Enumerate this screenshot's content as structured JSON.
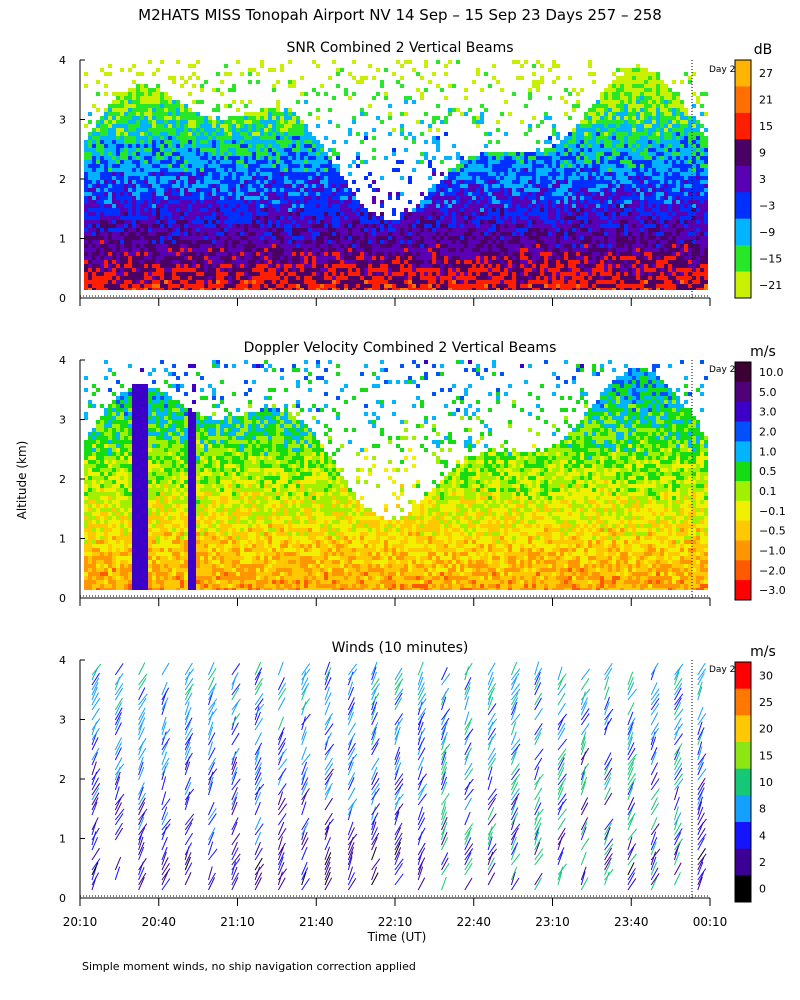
{
  "title": "M2HATS MISS Tonopah Airport NV  14 Sep – 15 Sep 23 Days 257 – 258",
  "footer": "Simple moment winds, no ship navigation correction applied",
  "shared_ylabel": "Altitude (km)",
  "shared_xlabel": "Time (UT)",
  "time_ticks": [
    "20:10",
    "20:40",
    "21:10",
    "21:40",
    "22:10",
    "22:40",
    "23:10",
    "23:40",
    "00:10"
  ],
  "day_marker_label": "Day 2",
  "chart_data": [
    {
      "type": "heatmap",
      "title": "SNR Combined 2 Vertical Beams",
      "xlabel": "Time (UT)",
      "ylabel": "Altitude (km)",
      "ylim": [
        0,
        4
      ],
      "yticks": [
        "0",
        "1",
        "2",
        "3",
        "4"
      ],
      "colorbar_unit": "dB",
      "colorbar_labels": [
        "27",
        "21",
        "15",
        "9",
        "3",
        "−3",
        "−9",
        "−15",
        "−21"
      ],
      "colorbar_colors": [
        "#ffb400",
        "#ff6e00",
        "#ff1e00",
        "#4b0066",
        "#5a00b4",
        "#0030ff",
        "#00b4ff",
        "#28e628",
        "#c8f000"
      ]
    },
    {
      "type": "heatmap",
      "title": "Doppler Velocity Combined 2 Vertical Beams",
      "xlabel": "Time (UT)",
      "ylabel": "Altitude (km)",
      "ylim": [
        0,
        4
      ],
      "yticks": [
        "0",
        "1",
        "2",
        "3",
        "4"
      ],
      "colorbar_unit": "m/s",
      "colorbar_labels": [
        "10.0",
        "5.0",
        "3.0",
        "2.0",
        "1.0",
        "0.5",
        "0.1",
        "−0.1",
        "−0.5",
        "−1.0",
        "−2.0",
        "−3.0"
      ],
      "colorbar_colors": [
        "#3c0032",
        "#500078",
        "#3c00c8",
        "#0050ff",
        "#00b4ff",
        "#14dc14",
        "#a0f000",
        "#f0f000",
        "#ffc800",
        "#ff9600",
        "#ff5a00",
        "#ff0000"
      ]
    },
    {
      "type": "scatter",
      "title": "Winds (10 minutes)",
      "xlabel": "Time (UT)",
      "ylabel": "Altitude (km)",
      "ylim": [
        0,
        4
      ],
      "yticks": [
        "0",
        "1",
        "2",
        "3",
        "4"
      ],
      "colorbar_unit": "m/s",
      "colorbar_labels": [
        "30",
        "25",
        "20",
        "15",
        "10",
        "8",
        "4",
        "2",
        "0"
      ],
      "colorbar_colors": [
        "#ff0000",
        "#ff7800",
        "#ffc800",
        "#8ce614",
        "#14c878",
        "#14a0ff",
        "#1414ff",
        "#3c0096",
        "#000000"
      ]
    }
  ]
}
